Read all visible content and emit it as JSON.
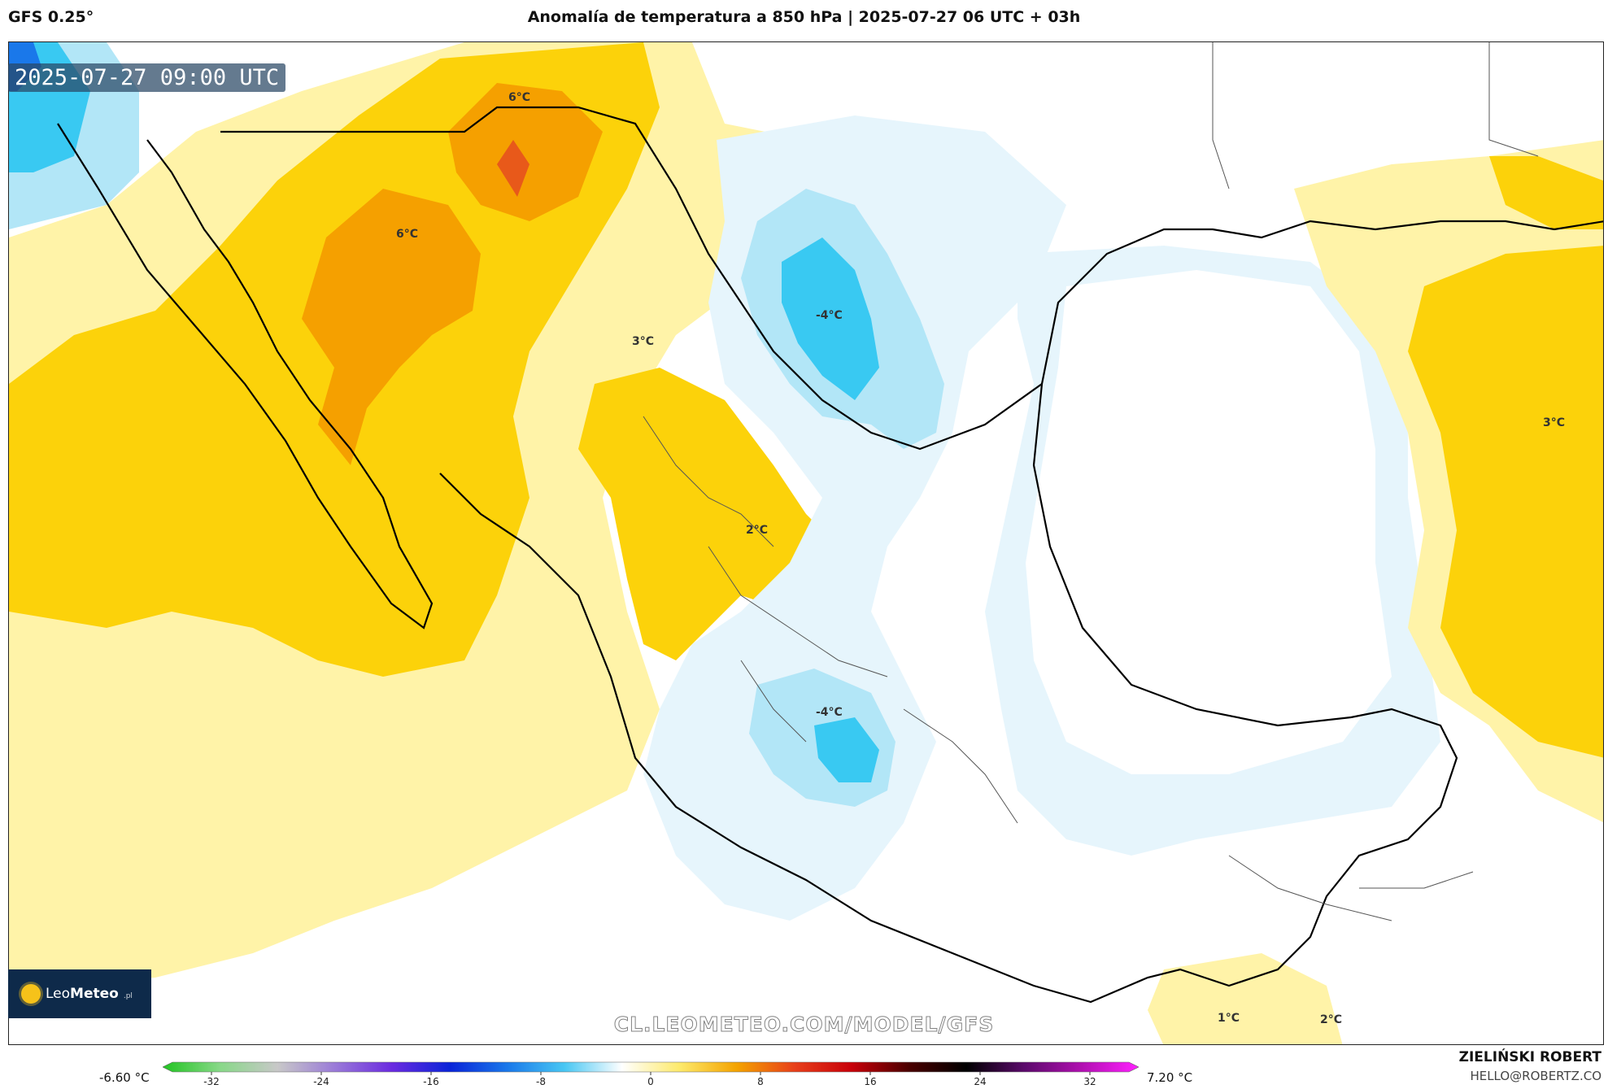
{
  "header": {
    "model": "GFS 0.25°",
    "title": "Anomalía de temperatura a 850 hPa | 2025-07-27 06 UTC + 03h"
  },
  "map": {
    "timestamp": "2025-07-27 09:00 UTC",
    "watermark": "CL.LEOMETEO.COM/MODEL/GFS",
    "brand": {
      "name_light": "Leo",
      "name_bold": "Meteo",
      "suffix": ".pl"
    },
    "contour_labels": [
      "6°C",
      "6°C",
      "3°C",
      "-4°C",
      "2°C",
      "-4°C",
      "3°C",
      "1°C",
      "2°C"
    ],
    "colors": {
      "strong_positive": "#f5a000",
      "moderate_positive": "#fcd20a",
      "weak_positive": "#fff3a8",
      "weak_negative": "#e6f5fc",
      "moderate_negative": "#b2e6f7",
      "strong_negative": "#39c9f2",
      "coastline": "#000000"
    }
  },
  "legend": {
    "min_label": "-6.60 °C",
    "max_label": "7.20 °C",
    "ticks": [
      "-32",
      "-24",
      "-16",
      "-8",
      "0",
      "8",
      "16",
      "24",
      "32"
    ],
    "gradient": [
      "#21c421",
      "#88d888",
      "#c8c8c8",
      "#9a7ad8",
      "#6a2ae0",
      "#0a24d8",
      "#1a78ea",
      "#49c7f3",
      "#ffffff",
      "#fdea6c",
      "#f4a300",
      "#e8401a",
      "#c8000a",
      "#4a0000",
      "#000000",
      "#5a0a6a",
      "#b010b0",
      "#ff20ff"
    ]
  },
  "credits": {
    "author": "ZIELIŃSKI ROBERT",
    "email": "HELLO@ROBERTZ.CO"
  }
}
